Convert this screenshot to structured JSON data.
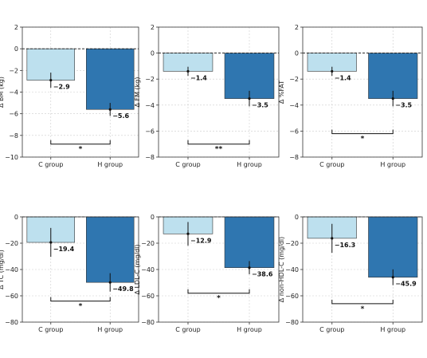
{
  "colors": {
    "c_group": "#bde0ee",
    "h_group": "#2f76b0",
    "grid": "#cccccc",
    "axis": "#333333"
  },
  "chart_data": [
    {
      "type": "bar",
      "ylabel": "Δ BM (kg)",
      "categories": [
        "C group",
        "H group"
      ],
      "values": [
        -2.9,
        -5.6
      ],
      "value_labels": [
        "−2.9",
        "−5.6"
      ],
      "errors": [
        0.7,
        0.6
      ],
      "ylim": [
        -10,
        2
      ],
      "yticks": [
        2,
        0,
        -2,
        -4,
        -6,
        -8,
        -10
      ],
      "ytick_labels": [
        "2",
        "0",
        "−2",
        "−4",
        "−6",
        "−8",
        "−10"
      ],
      "significance": "*",
      "sig_y": -8.8,
      "grid": true
    },
    {
      "type": "bar",
      "ylabel": "Δ FM (kg)",
      "categories": [
        "C group",
        "H group"
      ],
      "values": [
        -1.4,
        -3.5
      ],
      "value_labels": [
        "−1.4",
        "−3.5"
      ],
      "errors": [
        0.35,
        0.6
      ],
      "ylim": [
        -8,
        2
      ],
      "yticks": [
        2,
        0,
        -2,
        -4,
        -6,
        -8
      ],
      "ytick_labels": [
        "2",
        "0",
        "−2",
        "−4",
        "−6",
        "−8"
      ],
      "significance": "**",
      "sig_y": -7.0,
      "grid": true
    },
    {
      "type": "bar",
      "ylabel": "Δ %FAT",
      "categories": [
        "C group",
        "H group"
      ],
      "values": [
        -1.4,
        -3.5
      ],
      "value_labels": [
        "−1.4",
        "−3.5"
      ],
      "errors": [
        0.35,
        0.6
      ],
      "ylim": [
        -8,
        2
      ],
      "yticks": [
        2,
        0,
        -2,
        -4,
        -6,
        -8
      ],
      "ytick_labels": [
        "2",
        "0",
        "−2",
        "−4",
        "−6",
        "−8"
      ],
      "significance": "*",
      "sig_y": -6.2,
      "grid": true
    },
    {
      "type": "bar",
      "ylabel": "Δ TC (mg/dl)",
      "categories": [
        "C group",
        "H group"
      ],
      "values": [
        -19.4,
        -49.8
      ],
      "value_labels": [
        "−19.4",
        "−49.8"
      ],
      "errors": [
        11,
        7
      ],
      "ylim": [
        -80,
        0
      ],
      "yticks": [
        0,
        -20,
        -40,
        -60,
        -80
      ],
      "ytick_labels": [
        "0",
        "−20",
        "−40",
        "−60",
        "−80"
      ],
      "significance": "*",
      "sig_y": -64,
      "grid": true
    },
    {
      "type": "bar",
      "ylabel": "Δ LDL-C (mg/dl)",
      "categories": [
        "C group",
        "H group"
      ],
      "values": [
        -12.9,
        -38.6
      ],
      "value_labels": [
        "−12.9",
        "−38.6"
      ],
      "errors": [
        9,
        5
      ],
      "ylim": [
        -80,
        0
      ],
      "yticks": [
        0,
        -20,
        -40,
        -60,
        -80
      ],
      "ytick_labels": [
        "0",
        "−20",
        "−40",
        "−60",
        "−80"
      ],
      "significance": "*",
      "sig_y": -58,
      "grid": true
    },
    {
      "type": "bar",
      "ylabel": "Δ non-HDL-C (mg/dl)",
      "categories": [
        "C group",
        "H group"
      ],
      "values": [
        -16.3,
        -45.9
      ],
      "value_labels": [
        "−16.3",
        "−45.9"
      ],
      "errors": [
        11,
        6
      ],
      "ylim": [
        -80,
        0
      ],
      "yticks": [
        0,
        -20,
        -40,
        -60,
        -80
      ],
      "ytick_labels": [
        "0",
        "−20",
        "−40",
        "−60",
        "−80"
      ],
      "significance": "*",
      "sig_y": -66,
      "grid": true
    }
  ]
}
